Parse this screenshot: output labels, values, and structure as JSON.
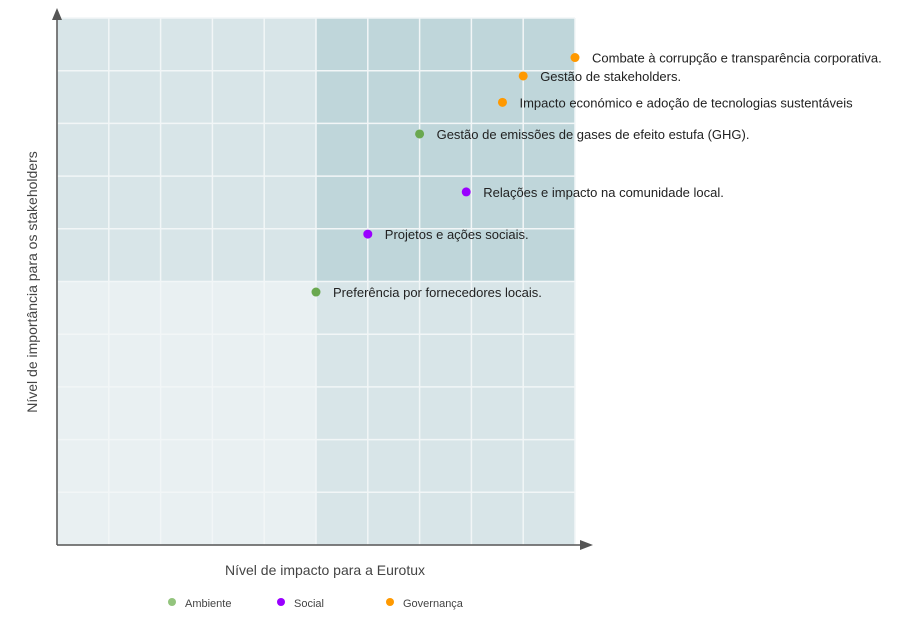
{
  "chart_data": {
    "type": "scatter",
    "title": "",
    "xlabel": "Nível de impacto para a Eurotux",
    "ylabel": "Nível de importância para os stakeholders",
    "xlim": [
      0,
      10
    ],
    "ylim": [
      0,
      10
    ],
    "grid": true,
    "tick_labels_shown": false,
    "quadrant_split": {
      "x": 5,
      "y": 5
    },
    "quadrant_colors": {
      "top_left": "#d8e5e8",
      "top_right": "#bfd6da",
      "bottom_left": "#e9f0f2",
      "bottom_right": "#d8e5e8"
    },
    "legend_position": "bottom",
    "series": [
      {
        "name": "Ambiente",
        "color": "#6aa84f",
        "legend_color": "#93c47d",
        "points": [
          {
            "label": "Gestão de emissões de gases de efeito estufa (GHG).",
            "x": 7.0,
            "y": 7.8
          },
          {
            "label": "Preferência por fornecedores locais.",
            "x": 5.0,
            "y": 4.8
          }
        ]
      },
      {
        "name": "Social",
        "color": "#9900ff",
        "legend_color": "#9900ff",
        "points": [
          {
            "label": "Relações e impacto na comunidade local.",
            "x": 7.9,
            "y": 6.7
          },
          {
            "label": "Projetos e ações sociais.",
            "x": 6.0,
            "y": 5.9
          }
        ]
      },
      {
        "name": "Governança",
        "color": "#ff9900",
        "legend_color": "#ff9900",
        "points": [
          {
            "label": "Combate à corrupção e transparência corporativa.",
            "x": 10.0,
            "y": 9.25
          },
          {
            "label": "Gestão de stakeholders.",
            "x": 9.0,
            "y": 8.9
          },
          {
            "label": "Impacto económico e adoção de tecnologias sustentáveis",
            "x": 8.6,
            "y": 8.4
          }
        ]
      }
    ]
  }
}
